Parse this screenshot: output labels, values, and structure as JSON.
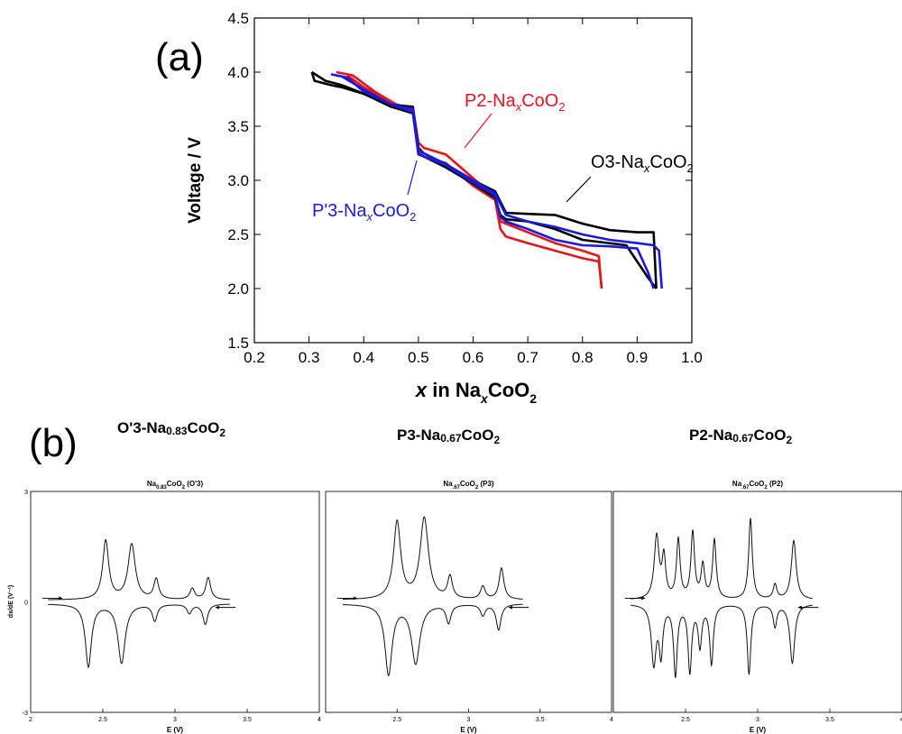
{
  "panel_a": {
    "label": "(a)",
    "chart_data": {
      "type": "line",
      "xlabel_italic": "x",
      "xlabel_text": " in Na",
      "xlabel_sub": "x",
      "xlabel_rest": "CoO",
      "xlabel_sub2": "2",
      "ylabel": "Voltage / V",
      "xlim": [
        0.2,
        1.0
      ],
      "ylim": [
        1.5,
        4.5
      ],
      "xticks": [
        "0.2",
        "0.3",
        "0.4",
        "0.5",
        "0.6",
        "0.7",
        "0.8",
        "0.9",
        "1.0"
      ],
      "yticks": [
        "1.5",
        "2.0",
        "2.5",
        "3.0",
        "3.5",
        "4.0",
        "4.5"
      ],
      "annotations": [
        {
          "pre": "P2-Na",
          "sub": "x",
          "mid": "CoO",
          "sub2": "2",
          "color": "#e8141c"
        },
        {
          "pre": "O3-Na",
          "sub": "x",
          "mid": "CoO",
          "sub2": "2",
          "color": "#000000"
        },
        {
          "pre": "P'3-Na",
          "sub": "x",
          "mid": "CoO",
          "sub2": "2",
          "color": "#1a1adc"
        }
      ],
      "series": [
        {
          "color": "#e8141c",
          "x": [
            0.35,
            0.38,
            0.42,
            0.46,
            0.49,
            0.5,
            0.51,
            0.55,
            0.6,
            0.64,
            0.65,
            0.66,
            0.7,
            0.75,
            0.8,
            0.83,
            0.835
          ],
          "y": [
            4.0,
            3.97,
            3.82,
            3.7,
            3.66,
            3.35,
            3.3,
            3.24,
            3.02,
            2.85,
            2.62,
            2.6,
            2.52,
            2.42,
            2.35,
            2.3,
            2.0
          ]
        },
        {
          "color": "#e8141c",
          "x": [
            0.835,
            0.83,
            0.8,
            0.75,
            0.7,
            0.66,
            0.65,
            0.64,
            0.6,
            0.55,
            0.51,
            0.5,
            0.49,
            0.45,
            0.4,
            0.37
          ],
          "y": [
            2.0,
            2.25,
            2.28,
            2.35,
            2.42,
            2.48,
            2.55,
            2.82,
            2.95,
            3.16,
            3.22,
            3.26,
            3.64,
            3.72,
            3.86,
            3.97
          ]
        },
        {
          "color": "#000000",
          "x": [
            0.305,
            0.31,
            0.34,
            0.36,
            0.4,
            0.45,
            0.49,
            0.5,
            0.51,
            0.55,
            0.6,
            0.64,
            0.66,
            0.7,
            0.75,
            0.8,
            0.85,
            0.9,
            0.93,
            0.935
          ],
          "y": [
            4.0,
            3.92,
            3.88,
            3.86,
            3.8,
            3.7,
            3.68,
            3.3,
            3.25,
            3.15,
            3.0,
            2.9,
            2.7,
            2.69,
            2.68,
            2.6,
            2.54,
            2.52,
            2.52,
            2.0
          ]
        },
        {
          "color": "#000000",
          "x": [
            0.935,
            0.92,
            0.88,
            0.8,
            0.75,
            0.7,
            0.66,
            0.65,
            0.64,
            0.6,
            0.55,
            0.51,
            0.5,
            0.49,
            0.45,
            0.4,
            0.36,
            0.33,
            0.305
          ],
          "y": [
            2.0,
            2.1,
            2.4,
            2.45,
            2.55,
            2.62,
            2.64,
            2.68,
            2.84,
            2.97,
            3.12,
            3.22,
            3.24,
            3.62,
            3.68,
            3.8,
            3.88,
            3.92,
            4.0
          ]
        },
        {
          "color": "#1a1adc",
          "x": [
            0.34,
            0.37,
            0.4,
            0.45,
            0.49,
            0.5,
            0.51,
            0.55,
            0.6,
            0.64,
            0.66,
            0.7,
            0.75,
            0.8,
            0.85,
            0.9,
            0.93,
            0.94,
            0.945
          ],
          "y": [
            3.98,
            3.95,
            3.82,
            3.7,
            3.66,
            3.28,
            3.25,
            3.15,
            3.0,
            2.88,
            2.68,
            2.62,
            2.57,
            2.5,
            2.45,
            2.42,
            2.4,
            2.35,
            2.0
          ]
        },
        {
          "color": "#1a1adc",
          "x": [
            0.93,
            0.92,
            0.9,
            0.85,
            0.8,
            0.75,
            0.7,
            0.66,
            0.65,
            0.64,
            0.6,
            0.55,
            0.51,
            0.5,
            0.49,
            0.45,
            0.4,
            0.36
          ],
          "y": [
            2.0,
            2.15,
            2.37,
            2.39,
            2.4,
            2.45,
            2.55,
            2.62,
            2.66,
            2.86,
            2.98,
            3.14,
            3.22,
            3.24,
            3.63,
            3.7,
            3.84,
            3.96
          ]
        }
      ]
    }
  },
  "panel_b": {
    "label": "(b)",
    "headings": [
      {
        "pre": "O'3-Na",
        "sub": "0.83",
        "post": "CoO",
        "sub2": "2"
      },
      {
        "pre": "P3-Na",
        "sub": "0.67",
        "post": "CoO",
        "sub2": "2"
      },
      {
        "pre": "P2-Na",
        "sub": "0.67",
        "post": "CoO",
        "sub2": "2"
      }
    ],
    "ylabel": "dx/dE (V⁻¹)",
    "xlabel": "E (V)",
    "yticks": [
      "3",
      "0",
      "-3"
    ],
    "xticks": [
      "2",
      "2.5",
      "3",
      "3.5",
      "4"
    ],
    "plots": [
      {
        "title_pre": "Na",
        "title_sub": "0.83",
        "title_post": "CoO",
        "title_sub2": "2",
        "title_tail": " (O'3)",
        "charge_peaks": [
          [
            2.52,
            1.6,
            0.025
          ],
          [
            2.7,
            1.5,
            0.03
          ],
          [
            2.87,
            0.55,
            0.02
          ],
          [
            3.12,
            0.3,
            0.02
          ],
          [
            3.23,
            0.6,
            0.02
          ]
        ],
        "discharge_peaks": [
          [
            2.4,
            -1.7,
            0.025
          ],
          [
            2.63,
            -1.6,
            0.03
          ],
          [
            2.86,
            -0.45,
            0.02
          ],
          [
            3.1,
            -0.25,
            0.02
          ],
          [
            3.21,
            -0.55,
            0.02
          ]
        ]
      },
      {
        "title_pre": "Na",
        "title_sub": ".67",
        "title_post": "CoO",
        "title_sub2": "2",
        "title_tail": " (P3)",
        "charge_peaks": [
          [
            2.5,
            2.1,
            0.03
          ],
          [
            2.69,
            2.2,
            0.035
          ],
          [
            2.87,
            0.6,
            0.02
          ],
          [
            3.1,
            0.35,
            0.02
          ],
          [
            3.23,
            0.85,
            0.02
          ]
        ],
        "discharge_peaks": [
          [
            2.44,
            -1.9,
            0.03
          ],
          [
            2.63,
            -1.6,
            0.035
          ],
          [
            2.86,
            -0.5,
            0.02
          ],
          [
            3.1,
            -0.3,
            0.02
          ],
          [
            3.21,
            -0.7,
            0.02
          ]
        ]
      },
      {
        "title_pre": "Na",
        "title_sub": ".67",
        "title_post": "CoO",
        "title_sub2": "2",
        "title_tail": " (P2)",
        "charge_peaks": [
          [
            2.3,
            1.7,
            0.02
          ],
          [
            2.35,
            1.1,
            0.015
          ],
          [
            2.45,
            1.6,
            0.015
          ],
          [
            2.55,
            1.8,
            0.015
          ],
          [
            2.62,
            0.9,
            0.015
          ],
          [
            2.7,
            1.6,
            0.015
          ],
          [
            2.95,
            2.2,
            0.015
          ],
          [
            3.12,
            0.4,
            0.015
          ],
          [
            3.25,
            1.6,
            0.02
          ]
        ],
        "discharge_peaks": [
          [
            2.28,
            -1.6,
            0.02
          ],
          [
            2.33,
            -1.3,
            0.015
          ],
          [
            2.43,
            -1.9,
            0.015
          ],
          [
            2.53,
            -1.8,
            0.015
          ],
          [
            2.6,
            -1.1,
            0.015
          ],
          [
            2.68,
            -1.6,
            0.015
          ],
          [
            2.94,
            -1.9,
            0.015
          ],
          [
            3.12,
            -0.6,
            0.015
          ],
          [
            3.24,
            -1.6,
            0.02
          ]
        ]
      }
    ]
  }
}
